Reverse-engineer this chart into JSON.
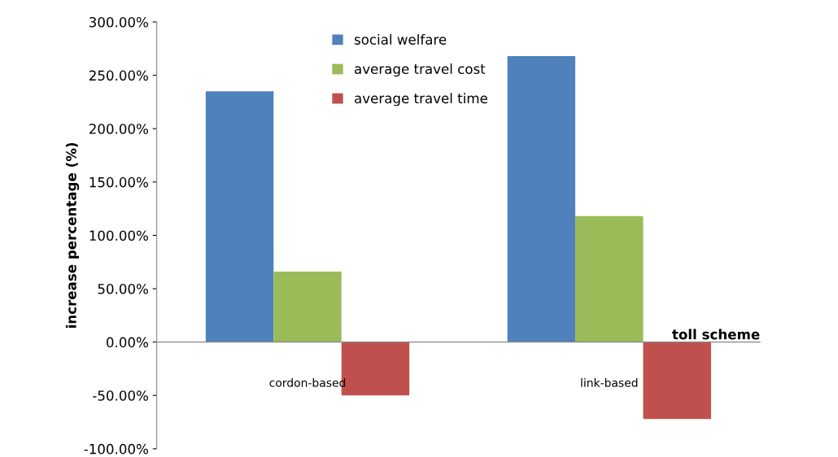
{
  "chart_data": {
    "type": "bar",
    "xlabel": "toll scheme",
    "ylabel": "increase percentage (%)",
    "categories": [
      "cordon-based",
      "link-based"
    ],
    "series": [
      {
        "name": "social welfare",
        "color": "#4f81bd",
        "values": [
          235,
          268
        ]
      },
      {
        "name": "average travel cost",
        "color": "#9bbb59",
        "values": [
          66,
          118
        ]
      },
      {
        "name": "average travel time",
        "color": "#c0504d",
        "values": [
          -50,
          -72
        ]
      }
    ],
    "ylim": [
      -100,
      300
    ],
    "yticks": [
      {
        "value": -100,
        "label": "-100.00%"
      },
      {
        "value": -50,
        "label": "-50.00%"
      },
      {
        "value": 0,
        "label": "0.00%"
      },
      {
        "value": 50,
        "label": "50.00%"
      },
      {
        "value": 100,
        "label": "100.00%"
      },
      {
        "value": 150,
        "label": "150.00%"
      },
      {
        "value": 200,
        "label": "200.00%"
      },
      {
        "value": 250,
        "label": "250.00%"
      },
      {
        "value": 300,
        "label": "300.00%"
      }
    ],
    "legend": "top"
  }
}
